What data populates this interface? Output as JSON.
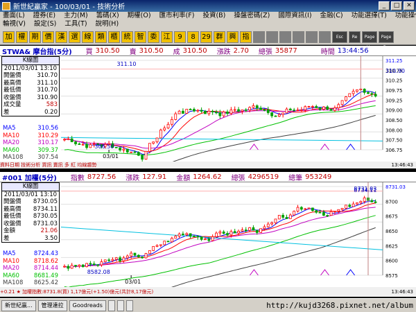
{
  "window": {
    "title": "新世紀贏家 - 100/03/01 - 技術分析",
    "buttons": [
      "_",
      "□",
      "✕"
    ]
  },
  "menu": {
    "row1": [
      "畫面(L)",
      "證券(E)",
      "主力(M)",
      "籌碼(X)",
      "期權(O)",
      "匯市利率(F)",
      "投資(B)",
      "操盤密碼(Z)",
      "國際資訊(I)",
      "金融(C)",
      "功能選擇(T)",
      "功能操作(F)"
    ],
    "row2": [
      "輪視(V)",
      "設定(S)",
      "工具(T)",
      "說明(H)"
    ]
  },
  "toolbar": {
    "buttons": [
      "加",
      "權",
      "期",
      "價",
      "漢",
      "選",
      "線",
      "類",
      "櫃",
      "統",
      "智",
      "委",
      "江",
      "9",
      "8",
      "29",
      "群",
      "興",
      "指",
      "",
      "",
      "",
      "",
      "",
      "",
      "Esc",
      "Re",
      "Page Up",
      "Page Dn"
    ]
  },
  "panel1": {
    "quote": {
      "symbol": "STWA& 摩台指(5分)",
      "buy_label": "買",
      "buy": "310.50",
      "sell_label": "賣",
      "sell": "310.50",
      "deal_label": "成",
      "deal": "310.50",
      "chg_label": "漲跌",
      "chg": "2.70",
      "vol_label": "總張",
      "vol": "35877",
      "time_label": "時間",
      "time": "13:44:56"
    },
    "info": {
      "header": "K線圖",
      "date": "2011/03/01 13:10",
      "rows": [
        {
          "k": "開盤價",
          "v": "310.70"
        },
        {
          "k": "最高價",
          "v": "311.10"
        },
        {
          "k": "最低價",
          "v": "310.70"
        },
        {
          "k": "收盤價",
          "v": "310.90"
        },
        {
          "k": "成交量",
          "v": "583"
        },
        {
          "k": "差",
          "v": "0.20"
        }
      ]
    },
    "ma": [
      {
        "k": "MA5",
        "v": "310.56",
        "c": "#0000ff"
      },
      {
        "k": "MA10",
        "v": "310.29",
        "c": "#ff0000"
      },
      {
        "k": "MA20",
        "v": "310.17",
        "c": "#c000c0"
      },
      {
        "k": "MA60",
        "v": "309.37",
        "c": "#00c000"
      },
      {
        "k": "MA108",
        "v": "307.54",
        "c": "#404040"
      }
    ],
    "labels": {
      "high": "311.10",
      "low": "306.50",
      "date": "03/01",
      "last": "310.90"
    },
    "yticks": [
      "311.25",
      "310.75",
      "310.25",
      "309.75",
      "309.25",
      "309.00",
      "308.50",
      "308.00",
      "307.50",
      "306.75"
    ],
    "footer": "資料日期  技術分析  買訊  賣訊  多 紅  均線趨勢",
    "footer_time": "13:46:43"
  },
  "panel2": {
    "quote": {
      "symbol": "#001 加權(5分)",
      "idx_label": "指數",
      "idx": "8727.56",
      "chg_label": "漲跌",
      "chg": "127.91",
      "amt_label": "金額",
      "amt": "1264.62",
      "vol_label": "總張",
      "vol": "4296519",
      "cnt_label": "總筆",
      "cnt": "953249"
    },
    "info": {
      "header": "K線圖",
      "date": "2011/03/01 13:10",
      "rows": [
        {
          "k": "開盤價",
          "v": "8730.05"
        },
        {
          "k": "最高價",
          "v": "8734.11"
        },
        {
          "k": "最低價",
          "v": "8730.05"
        },
        {
          "k": "收盤價",
          "v": "8731.03"
        },
        {
          "k": "金額",
          "v": "21.06"
        },
        {
          "k": "差",
          "v": "3.50"
        }
      ]
    },
    "ma": [
      {
        "k": "MA5",
        "v": "8724.43",
        "c": "#0000ff"
      },
      {
        "k": "MA10",
        "v": "8718.62",
        "c": "#ff0000"
      },
      {
        "k": "MA20",
        "v": "8714.44",
        "c": "#c000c0"
      },
      {
        "k": "MA60",
        "v": "8681.49",
        "c": "#00c000"
      },
      {
        "k": "MA108",
        "v": "8625.42",
        "c": "#404040"
      }
    ],
    "labels": {
      "high": "8734.11",
      "low": "8582.08",
      "date": "03/01",
      "last": "8731.03"
    },
    "yticks": [
      "8731.03",
      "8700",
      "8675",
      "8650",
      "8625",
      "8600",
      "8575"
    ],
    "footer": "+0.21  ★ 加權指數:8731.8(買) 1,17億元(+1.50)億元(共計8,17億元)",
    "footer_time": "13:46:43"
  },
  "taskbar": {
    "items": [
      "新世紀贏...",
      "管理達拉",
      "Goodreads",
      "",
      "",
      ""
    ],
    "url": "http://kujd3268.pixnet.net/album"
  }
}
